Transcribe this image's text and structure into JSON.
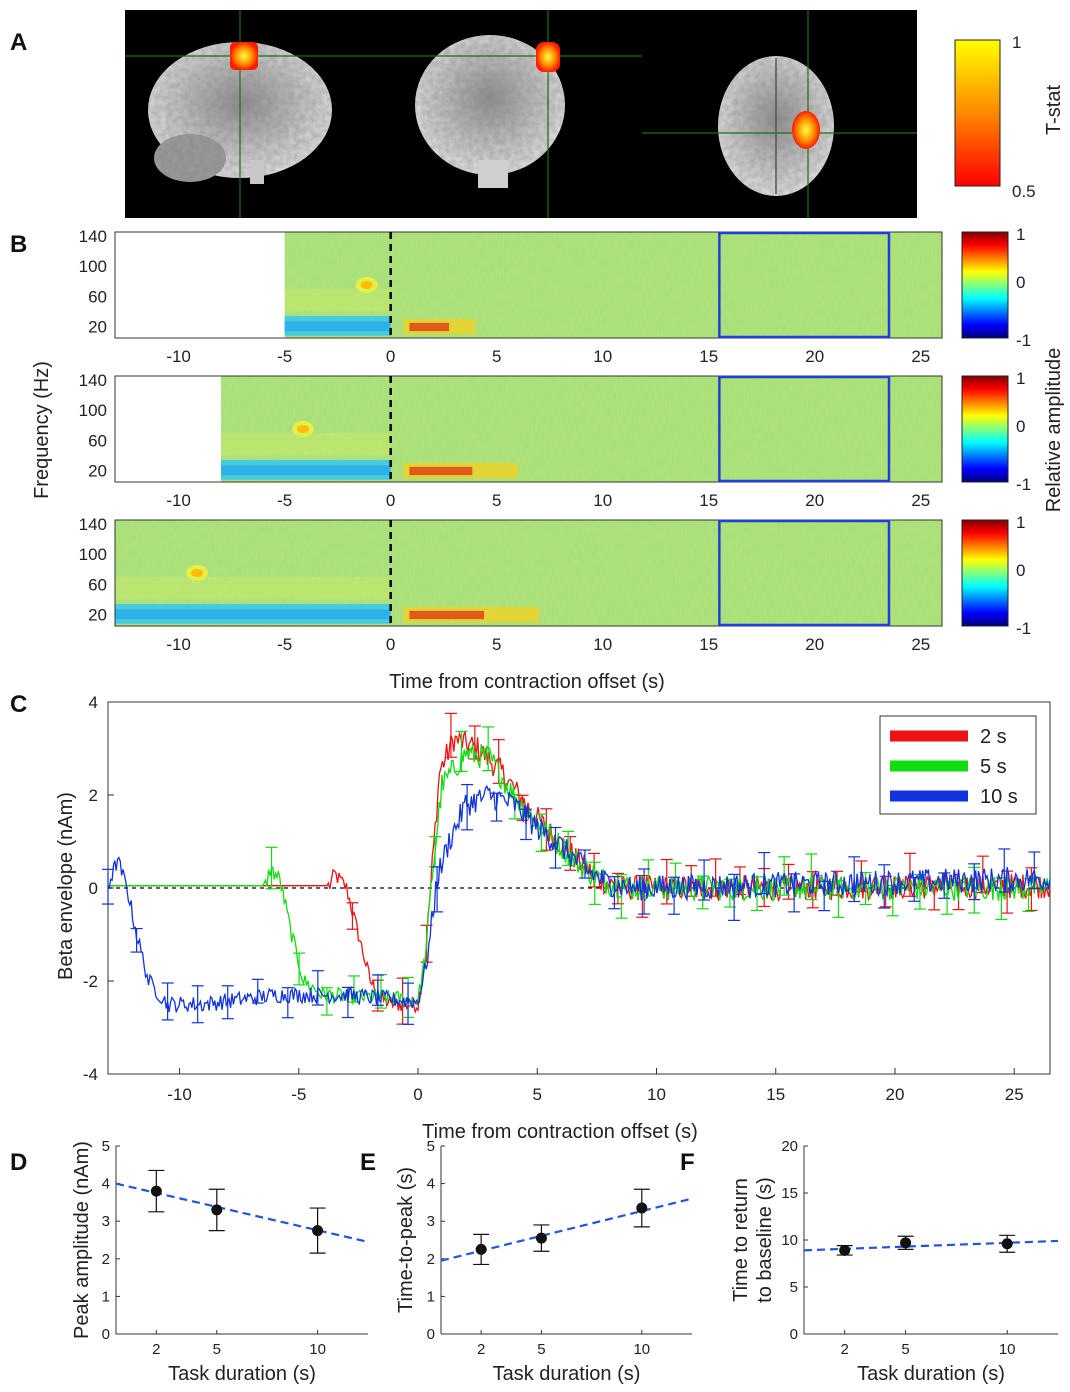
{
  "panel_labels": [
    "A",
    "B",
    "C",
    "D",
    "E",
    "F"
  ],
  "colors": {
    "red": "#ee1111",
    "green": "#11dd11",
    "blue": "#1133dd",
    "roi_box": "#1f3fd6",
    "fit": "#2255dd"
  },
  "chart_data": [
    {
      "panel": "A",
      "type": "other",
      "title": "",
      "colorbar": {
        "label": "T-stat",
        "min_label": "0.5",
        "max_label": "1",
        "range": [
          0.5,
          1
        ],
        "colormap": "hot"
      },
      "views": [
        "sagittal",
        "coronal",
        "axial"
      ]
    },
    {
      "panel": "B",
      "type": "heatmap",
      "ylabel": "Frequency (Hz)",
      "xlabel": "Time from contraction offset (s)",
      "xlim": [
        -13,
        26
      ],
      "ylim": [
        5,
        145
      ],
      "y_ticks": [
        20,
        60,
        100,
        140
      ],
      "x_ticks": [
        -10,
        -5,
        0,
        5,
        10,
        15,
        20,
        25
      ],
      "colorbar": {
        "label": "Relative amplitude",
        "ticks": [
          1,
          0,
          -1
        ],
        "range": [
          -1,
          1
        ],
        "colormap": "jet"
      },
      "offset_marker_x": 0,
      "roi_box": {
        "x": [
          15.5,
          23.5
        ],
        "y": [
          5,
          145
        ]
      },
      "rows": [
        {
          "task_duration_s": 2,
          "data_start_s": -5
        },
        {
          "task_duration_s": 5,
          "data_start_s": -8
        },
        {
          "task_duration_s": 10,
          "data_start_s": -13
        }
      ]
    },
    {
      "panel": "C",
      "type": "line",
      "xlabel": "Time from contraction offset (s)",
      "ylabel": "Beta envelope (nAm)",
      "xlim": [
        -13,
        26.5
      ],
      "ylim": [
        -4,
        4
      ],
      "x_ticks": [
        -10,
        -5,
        0,
        5,
        10,
        15,
        20,
        25
      ],
      "y_ticks": [
        4,
        2,
        0,
        -2,
        -4
      ],
      "baseline_y": 0,
      "legend_position": "top-right",
      "series": [
        {
          "name": "2 s",
          "color": "#ee1111",
          "points": [
            [
              -13,
              0.05
            ],
            [
              -3.7,
              0.05
            ],
            [
              -3.5,
              0.3
            ],
            [
              -3.0,
              0.0
            ],
            [
              -2.5,
              -1.0
            ],
            [
              -2.0,
              -2.0
            ],
            [
              -1.5,
              -2.4
            ],
            [
              -1.0,
              -2.5
            ],
            [
              0.0,
              -2.5
            ],
            [
              0.3,
              -1.5
            ],
            [
              0.6,
              0.5
            ],
            [
              0.9,
              2.5
            ],
            [
              1.5,
              3.2
            ],
            [
              2.5,
              3.0
            ],
            [
              3.5,
              2.5
            ],
            [
              4.5,
              1.8
            ],
            [
              5.5,
              1.2
            ],
            [
              6.5,
              0.7
            ],
            [
              7.5,
              0.2
            ],
            [
              8.5,
              0.0
            ],
            [
              12,
              0.0
            ],
            [
              26.5,
              0.05
            ]
          ]
        },
        {
          "name": "5 s",
          "color": "#11dd11",
          "points": [
            [
              -13,
              0.05
            ],
            [
              -6.4,
              0.05
            ],
            [
              -6.2,
              0.4
            ],
            [
              -5.8,
              0.2
            ],
            [
              -5.3,
              -1.0
            ],
            [
              -4.8,
              -2.0
            ],
            [
              -4.0,
              -2.3
            ],
            [
              0.0,
              -2.4
            ],
            [
              0.3,
              -1.5
            ],
            [
              0.6,
              0.3
            ],
            [
              1.0,
              2.2
            ],
            [
              2.0,
              2.9
            ],
            [
              3.0,
              2.8
            ],
            [
              4.0,
              2.0
            ],
            [
              5.0,
              1.4
            ],
            [
              6.0,
              0.9
            ],
            [
              7.0,
              0.4
            ],
            [
              8.0,
              0.1
            ],
            [
              9.0,
              0.0
            ],
            [
              26.5,
              0.0
            ]
          ]
        },
        {
          "name": "10 s",
          "color": "#1133dd",
          "points": [
            [
              -13,
              0.05
            ],
            [
              -12.6,
              0.6
            ],
            [
              -12.2,
              0.0
            ],
            [
              -11.8,
              -1.0
            ],
            [
              -11.3,
              -2.0
            ],
            [
              -10.5,
              -2.5
            ],
            [
              -9.0,
              -2.5
            ],
            [
              -6.0,
              -2.3
            ],
            [
              -3.0,
              -2.3
            ],
            [
              0.0,
              -2.45
            ],
            [
              0.4,
              -1.5
            ],
            [
              0.8,
              0.2
            ],
            [
              1.3,
              1.0
            ],
            [
              2.0,
              1.8
            ],
            [
              3.0,
              2.0
            ],
            [
              4.0,
              1.8
            ],
            [
              5.0,
              1.3
            ],
            [
              6.0,
              0.9
            ],
            [
              7.0,
              0.4
            ],
            [
              8.0,
              0.1
            ],
            [
              9.0,
              0.0
            ],
            [
              26.5,
              0.2
            ]
          ]
        }
      ]
    },
    {
      "panel": "D",
      "type": "scatter",
      "xlabel": "Task duration (s)",
      "ylabel": "Peak amplitude (nAm)",
      "xlim": [
        0,
        12.5
      ],
      "ylim": [
        0,
        5
      ],
      "x_ticks": [
        2,
        5,
        10
      ],
      "y_ticks": [
        0,
        1,
        2,
        3,
        4,
        5
      ],
      "x": [
        2,
        5,
        10
      ],
      "y": [
        3.8,
        3.3,
        2.75
      ],
      "err": [
        0.55,
        0.55,
        0.6
      ],
      "fit_line": {
        "y_at_xmin": 4.0,
        "y_at_xmax": 2.45
      }
    },
    {
      "panel": "E",
      "type": "scatter",
      "xlabel": "Task duration (s)",
      "ylabel": "Time-to-peak (s)",
      "xlim": [
        0,
        12.5
      ],
      "ylim": [
        0,
        5
      ],
      "x_ticks": [
        2,
        5,
        10
      ],
      "y_ticks": [
        0,
        1,
        2,
        3,
        4,
        5
      ],
      "x": [
        2,
        5,
        10
      ],
      "y": [
        2.25,
        2.55,
        3.35
      ],
      "err": [
        0.4,
        0.35,
        0.5
      ],
      "fit_line": {
        "y_at_xmin": 1.95,
        "y_at_xmax": 3.6
      }
    },
    {
      "panel": "F",
      "type": "scatter",
      "xlabel": "Task duration (s)",
      "ylabel": "Time to return\nto baseline (s)",
      "xlim": [
        0,
        12.5
      ],
      "ylim": [
        0,
        20
      ],
      "x_ticks": [
        2,
        5,
        10
      ],
      "y_ticks": [
        0,
        5,
        10,
        15,
        20
      ],
      "x": [
        2,
        5,
        10
      ],
      "y": [
        8.9,
        9.7,
        9.6
      ],
      "err": [
        0.5,
        0.7,
        0.9
      ],
      "fit_line": {
        "y_at_xmin": 8.9,
        "y_at_xmax": 9.9
      }
    }
  ]
}
